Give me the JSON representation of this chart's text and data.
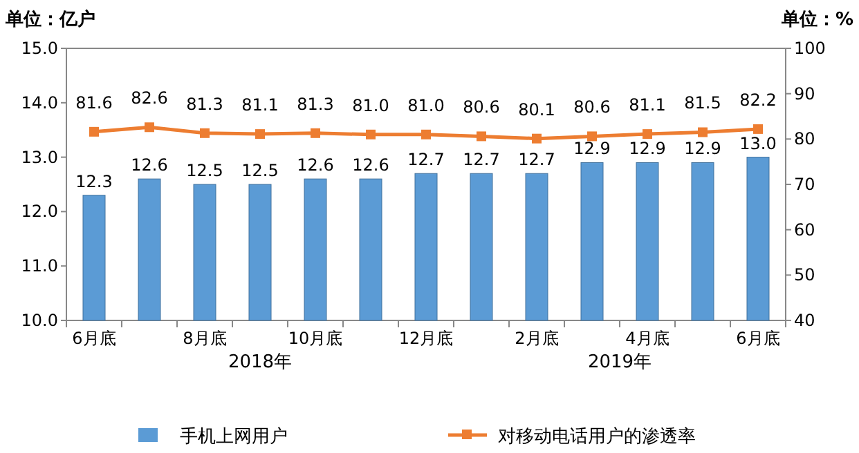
{
  "chart_data": {
    "type": "bar",
    "categories": [
      "6月底",
      null,
      "8月底",
      null,
      "10月底",
      null,
      "12月底",
      null,
      "2月底",
      null,
      "4月底",
      null,
      "6月底"
    ],
    "series": [
      {
        "name": "手机上网用户",
        "color": "#5b9bd5",
        "values": [
          12.3,
          12.6,
          12.5,
          12.5,
          12.6,
          12.6,
          12.7,
          12.7,
          12.7,
          12.9,
          12.9,
          12.9,
          13.0
        ],
        "value_labels": [
          "12.3",
          "12.6",
          "12.5",
          "12.5",
          "12.6",
          "12.6",
          "12.7",
          "12.7",
          "12.7",
          "12.9",
          "12.9",
          "12.9",
          "13.0"
        ]
      },
      {
        "name": "对移动电话用户的渗透率",
        "type": "line",
        "axis": "y2",
        "color": "#ed7d31",
        "marker": "square",
        "values": [
          81.6,
          82.6,
          81.3,
          81.1,
          81.3,
          81.0,
          81.0,
          80.6,
          80.1,
          80.6,
          81.1,
          81.5,
          82.2
        ],
        "value_labels": [
          "81.6",
          "82.6",
          "81.3",
          "81.1",
          "81.3",
          "81.0",
          "81.0",
          "80.6",
          "80.1",
          "80.6",
          "81.1",
          "81.5",
          "82.2"
        ]
      }
    ],
    "ylabel": "单位：亿户",
    "y2label": "单位：%",
    "ylim": [
      10,
      15
    ],
    "yticks": [
      {
        "value": 10,
        "label": "10.0"
      },
      {
        "value": 11,
        "label": "11.0"
      },
      {
        "value": 12,
        "label": "12.0"
      },
      {
        "value": 13,
        "label": "13.0"
      },
      {
        "value": 14,
        "label": "14.0"
      },
      {
        "value": 15,
        "label": "15.0"
      }
    ],
    "y2lim": [
      40,
      100
    ],
    "y2ticks": [
      40,
      50,
      60,
      70,
      80,
      90,
      100
    ],
    "legend": "bottom",
    "annotations": [
      "2018年",
      "2019年"
    ]
  }
}
